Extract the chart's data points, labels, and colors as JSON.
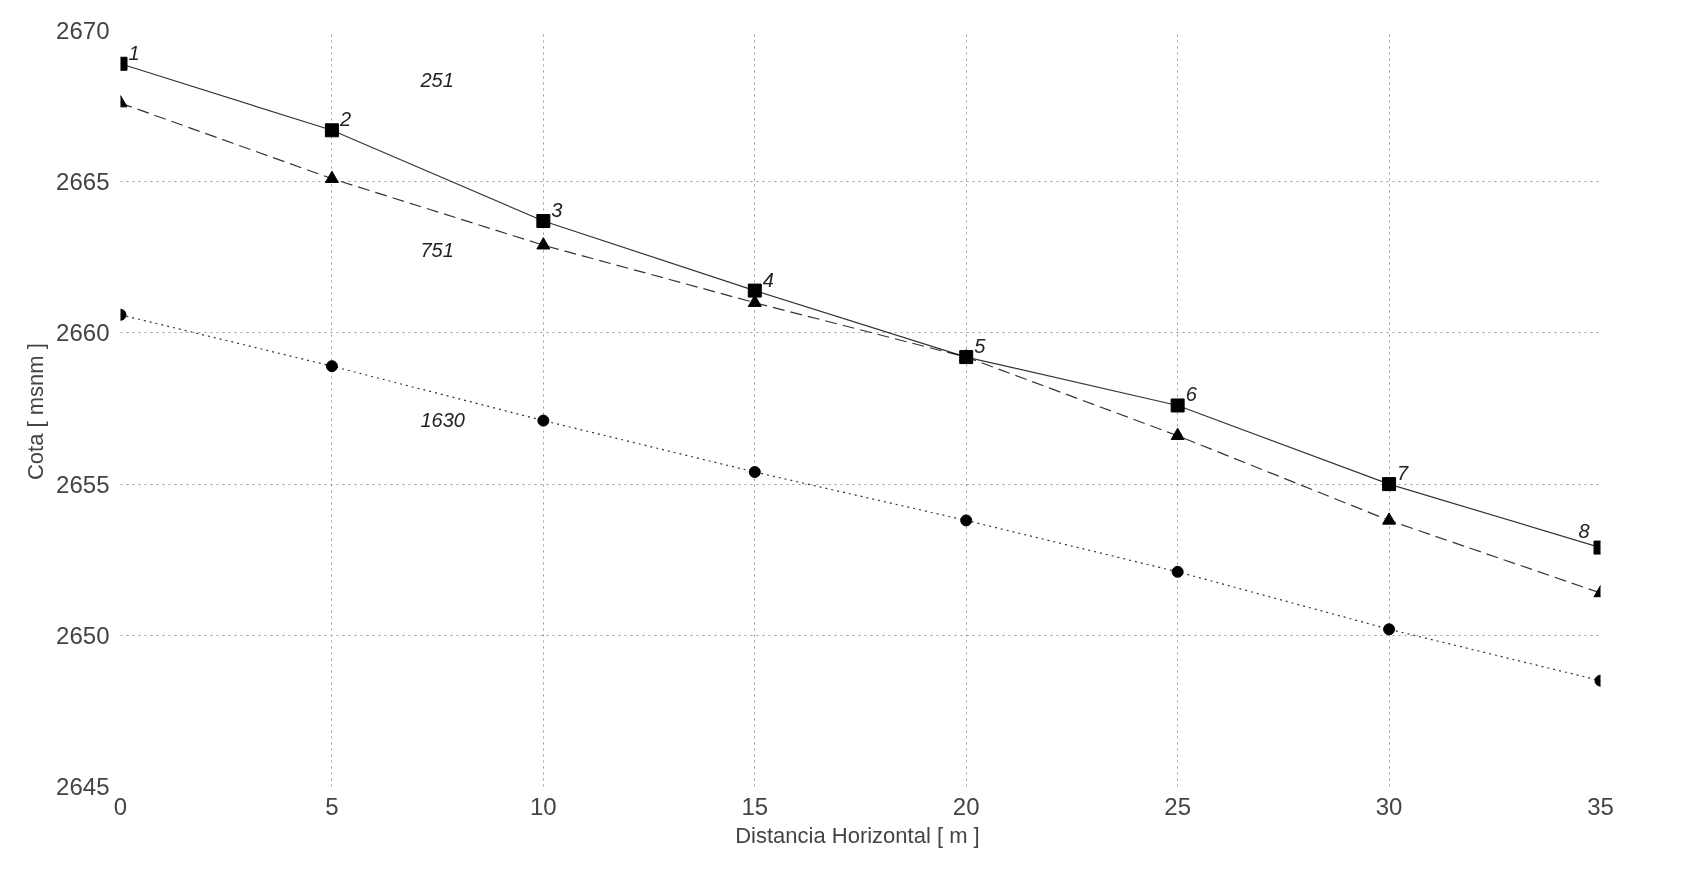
{
  "chart_data": {
    "type": "line",
    "xlabel": "Distancia Horizontal  [ m ]",
    "ylabel": "Cota  [ msnm ]",
    "x": [
      0,
      5,
      10,
      15,
      20,
      25,
      30,
      35
    ],
    "series": [
      {
        "color": "#000000",
        "marker": "square",
        "line_style": "solid",
        "values": [
          2668.9,
          2666.7,
          2663.7,
          2661.4,
          2659.2,
          2657.6,
          2655.0,
          2652.9
        ]
      },
      {
        "color": "#000000",
        "marker": "triangle",
        "line_style": "dashed",
        "values": [
          2667.6,
          2665.1,
          2662.9,
          2661.0,
          2659.2,
          2656.6,
          2653.8,
          2651.4
        ]
      },
      {
        "color": "#000000",
        "marker": "circle",
        "line_style": "dotted",
        "values": [
          2660.6,
          2658.9,
          2657.1,
          2655.4,
          2653.8,
          2652.1,
          2650.2,
          2648.5
        ]
      }
    ],
    "xlim": [
      0,
      35
    ],
    "ylim": [
      2645,
      2670
    ],
    "xticks": [
      0,
      5,
      10,
      15,
      20,
      25,
      30,
      35
    ],
    "yticks": [
      2645,
      2650,
      2655,
      2660,
      2665,
      2670
    ],
    "grid": true,
    "annotations": [
      {
        "text": "1",
        "x": 0,
        "y": 2668.9
      },
      {
        "text": "2",
        "x": 5,
        "y": 2666.7
      },
      {
        "text": "3",
        "x": 10,
        "y": 2663.7
      },
      {
        "text": "4",
        "x": 15,
        "y": 2661.4
      },
      {
        "text": "5",
        "x": 20,
        "y": 2659.2
      },
      {
        "text": "6",
        "x": 25,
        "y": 2657.6
      },
      {
        "text": "7",
        "x": 30,
        "y": 2655.0
      },
      {
        "text": "8",
        "x": 35,
        "y": 2652.9
      },
      "251",
      "751",
      "1630"
    ]
  }
}
